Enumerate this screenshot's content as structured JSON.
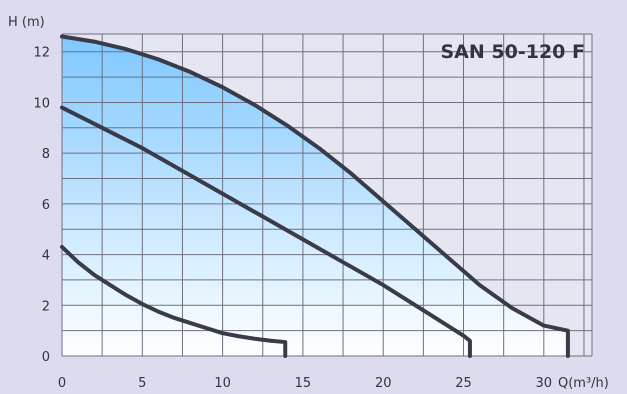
{
  "chart_data": {
    "type": "line",
    "title": "SAN 50-120 F",
    "xlabel": "Q(m³/h)",
    "ylabel": "H (m)",
    "xlim": [
      0,
      33
    ],
    "ylim": [
      0,
      12.7
    ],
    "xticks": [
      0,
      5,
      10,
      15,
      20,
      25,
      30
    ],
    "yticks": [
      0,
      2,
      4,
      6,
      8,
      10,
      12
    ],
    "grid": true,
    "fill_under_top_curve": true,
    "colors": {
      "background": "#dcdcee",
      "fill_top": "#7ec8ff",
      "fill_bottom": "#ffffff",
      "curve": "#3a3a48",
      "grid": "#6f6f80"
    },
    "series": [
      {
        "x": [
          0,
          2,
          4,
          6,
          8,
          10,
          12,
          14,
          16,
          18,
          20,
          22,
          24,
          26,
          28,
          30,
          31.5,
          31.5
        ],
        "y": [
          12.6,
          12.4,
          12.1,
          11.7,
          11.2,
          10.6,
          9.9,
          9.1,
          8.2,
          7.2,
          6.1,
          5.0,
          3.9,
          2.8,
          1.9,
          1.2,
          1.0,
          0
        ]
      },
      {
        "x": [
          0,
          2.5,
          5,
          7.5,
          10,
          12.5,
          15,
          17.5,
          20,
          22.5,
          25,
          25.4,
          25.4
        ],
        "y": [
          9.8,
          9.0,
          8.2,
          7.3,
          6.4,
          5.5,
          4.6,
          3.7,
          2.8,
          1.8,
          0.8,
          0.6,
          0
        ]
      },
      {
        "x": [
          0,
          1,
          2,
          3,
          4,
          5,
          6,
          7,
          8,
          9,
          10,
          11,
          12,
          13,
          13.9,
          13.9
        ],
        "y": [
          4.3,
          3.7,
          3.2,
          2.8,
          2.4,
          2.05,
          1.75,
          1.5,
          1.3,
          1.1,
          0.9,
          0.78,
          0.68,
          0.6,
          0.55,
          0
        ]
      }
    ]
  }
}
